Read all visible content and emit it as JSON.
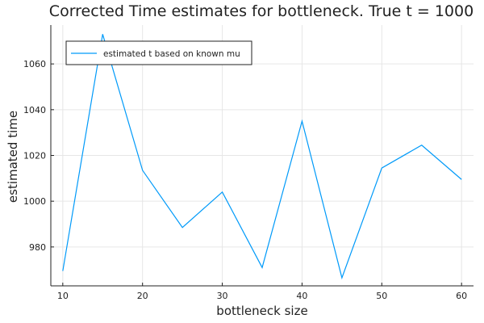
{
  "chart_data": {
    "type": "line",
    "title": "Corrected Time estimates for bottleneck. True t = 1000",
    "xlabel": "bottleneck size",
    "ylabel": "estimated time",
    "xlim": [
      8.5,
      61.5
    ],
    "ylim": [
      963,
      1077
    ],
    "xticks": [
      10,
      20,
      30,
      40,
      50,
      60
    ],
    "yticks": [
      980,
      1000,
      1020,
      1040,
      1060
    ],
    "grid": true,
    "legend_position": "top-left",
    "series": [
      {
        "name": "estimated t based on known mu",
        "color": "#009AF9",
        "x": [
          10,
          15,
          20,
          25,
          30,
          35,
          40,
          45,
          50,
          55,
          60
        ],
        "y": [
          969.5,
          1073,
          1013.5,
          988.5,
          1004,
          971,
          1035,
          966.5,
          1014.5,
          1024.5,
          1009.5
        ]
      }
    ]
  }
}
